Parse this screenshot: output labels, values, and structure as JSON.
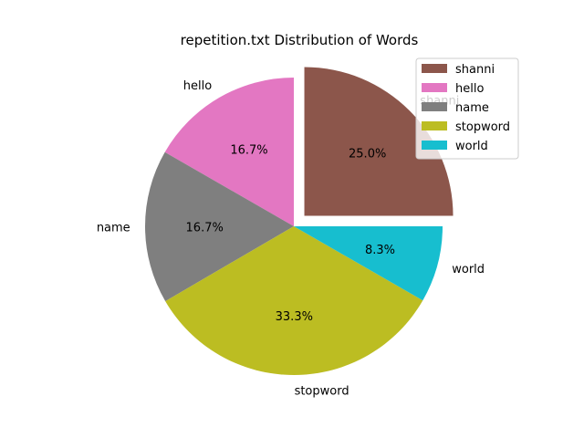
{
  "chart_data": {
    "type": "pie",
    "title": "repetition.txt Distribution of Words",
    "slices": [
      {
        "label": "shanni",
        "value": 25.0,
        "pct_label": "25.0%",
        "color": "#8c564b",
        "exploded": true
      },
      {
        "label": "hello",
        "value": 16.7,
        "pct_label": "16.7%",
        "color": "#e377c2",
        "exploded": false
      },
      {
        "label": "name",
        "value": 16.7,
        "pct_label": "16.7%",
        "color": "#7f7f7f",
        "exploded": false
      },
      {
        "label": "stopword",
        "value": 33.3,
        "pct_label": "33.3%",
        "color": "#bcbd22",
        "exploded": false
      },
      {
        "label": "world",
        "value": 8.3,
        "pct_label": "8.3%",
        "color": "#17becf",
        "exploded": false
      }
    ],
    "legend": {
      "placement": "top-right",
      "entries": [
        "shanni",
        "hello",
        "name",
        "stopword",
        "world"
      ]
    }
  }
}
